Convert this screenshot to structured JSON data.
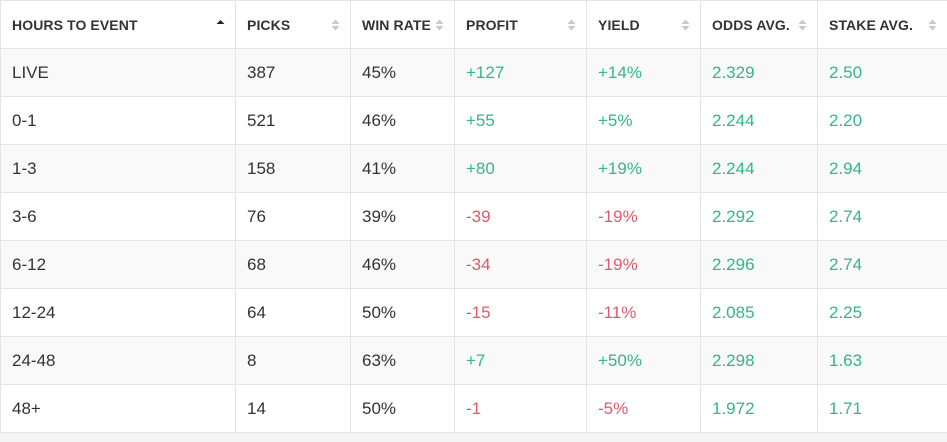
{
  "table": {
    "columns": [
      {
        "label": "HOURS TO EVENT",
        "sort": "asc"
      },
      {
        "label": "PICKS",
        "sort": "none"
      },
      {
        "label": "WIN RATE",
        "sort": "none"
      },
      {
        "label": "PROFIT",
        "sort": "none"
      },
      {
        "label": "YIELD",
        "sort": "none"
      },
      {
        "label": "ODDS AVG.",
        "sort": "none"
      },
      {
        "label": "STAKE AVG.",
        "sort": "none"
      }
    ],
    "rows": [
      [
        "LIVE",
        "387",
        "45%",
        "+127",
        "+14%",
        "2.329",
        "2.50"
      ],
      [
        "0-1",
        "521",
        "46%",
        "+55",
        "+5%",
        "2.244",
        "2.20"
      ],
      [
        "1-3",
        "158",
        "41%",
        "+80",
        "+19%",
        "2.244",
        "2.94"
      ],
      [
        "3-6",
        "76",
        "39%",
        "-39",
        "-19%",
        "2.292",
        "2.74"
      ],
      [
        "6-12",
        "68",
        "46%",
        "-34",
        "-19%",
        "2.296",
        "2.74"
      ],
      [
        "12-24",
        "64",
        "50%",
        "-15",
        "-11%",
        "2.085",
        "2.25"
      ],
      [
        "24-48",
        "8",
        "63%",
        "+7",
        "+50%",
        "2.298",
        "1.63"
      ],
      [
        "48+",
        "14",
        "50%",
        "-1",
        "-5%",
        "1.972",
        "1.71"
      ]
    ]
  },
  "colors": {
    "positive": "#35b58a",
    "negative": "#e05a6e",
    "text": "#333333",
    "sort_active": "#222222",
    "sort_inactive": "#c8c8c8"
  },
  "icons": {
    "sort_asc": "sort-ascending-icon",
    "sort_none": "sort-unsorted-icon"
  }
}
